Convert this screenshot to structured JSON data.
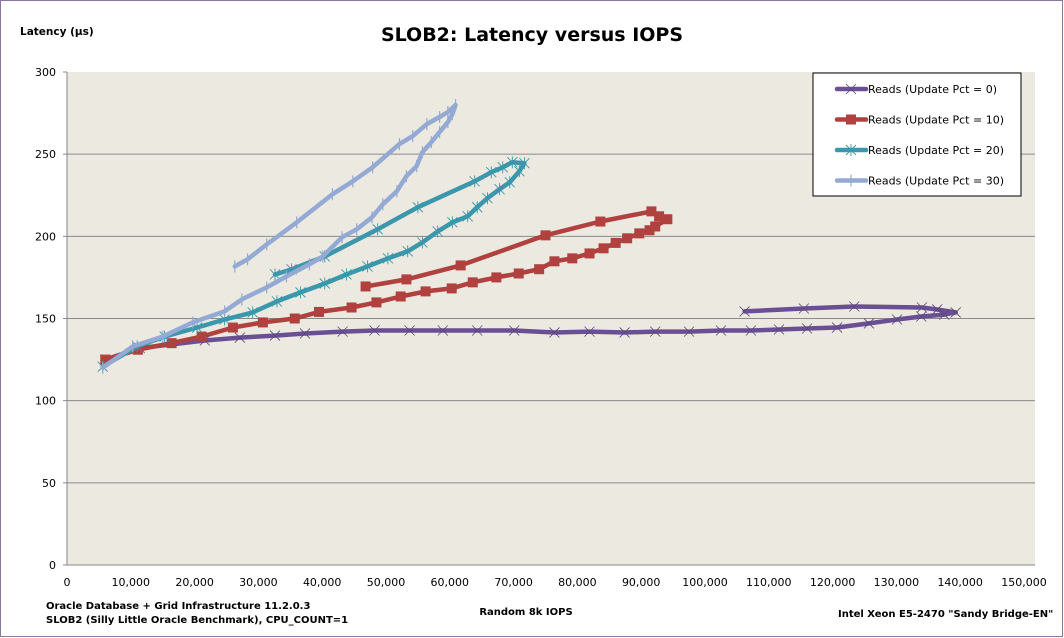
{
  "chart_data": {
    "type": "line",
    "title": "SLOB2: Latency versus IOPS",
    "xlabel": "Random 8k IOPS",
    "ylabel": "Latency (µs)",
    "xlim": [
      0,
      150000
    ],
    "ylim": [
      0,
      300
    ],
    "x_ticks": [
      "0",
      "10,000",
      "20,000",
      "30,000",
      "40,000",
      "50,000",
      "60,000",
      "70,000",
      "80,000",
      "90,000",
      "100,000",
      "110,000",
      "120,000",
      "130,000",
      "140,000",
      "150,000"
    ],
    "y_ticks": [
      "0",
      "50",
      "100",
      "150",
      "200",
      "250",
      "300"
    ],
    "grid": "horizontal",
    "legend_position": "top-right",
    "background": "#ece9e0",
    "footnotes": {
      "left_line1": "Oracle Database + Grid Infrastructure 11.2.0.3",
      "left_line2": "SLOB2 (Silly Little Oracle Benchmark), CPU_COUNT=1",
      "right": "Intel Xeon E5-2470 \"Sandy Bridge-EN\""
    },
    "series": [
      {
        "name": "Reads (Update Pct = 0)",
        "color": "#6b4f94",
        "marker": "x",
        "points": [
          [
            6000,
            125
          ],
          [
            11400,
            132
          ],
          [
            21600,
            136.6
          ],
          [
            27100,
            138.4
          ],
          [
            32600,
            139.6
          ],
          [
            37300,
            140.9
          ],
          [
            43200,
            142
          ],
          [
            48200,
            142.7
          ],
          [
            53700,
            142.7
          ],
          [
            58900,
            142.7
          ],
          [
            64300,
            142.7
          ],
          [
            70100,
            142.7
          ],
          [
            76400,
            141.5
          ],
          [
            81900,
            142
          ],
          [
            87400,
            141.5
          ],
          [
            92200,
            142
          ],
          [
            97500,
            142
          ],
          [
            102500,
            142.7
          ],
          [
            107200,
            142.7
          ],
          [
            111600,
            143.3
          ],
          [
            116000,
            143.9
          ],
          [
            120700,
            144.5
          ],
          [
            125700,
            147
          ],
          [
            130100,
            149.4
          ],
          [
            133900,
            151.2
          ],
          [
            137500,
            152.4
          ],
          [
            139300,
            153.7
          ],
          [
            136400,
            155.5
          ],
          [
            134000,
            156.7
          ],
          [
            123400,
            157.3
          ],
          [
            115500,
            156.1
          ],
          [
            106200,
            154.3
          ]
        ]
      },
      {
        "name": "Reads (Update Pct = 10)",
        "color": "#b0413e",
        "marker": "square",
        "points": [
          [
            6000,
            125
          ],
          [
            11100,
            131
          ],
          [
            16400,
            135
          ],
          [
            21100,
            139
          ],
          [
            26000,
            144.5
          ],
          [
            30700,
            147.6
          ],
          [
            35700,
            150
          ],
          [
            39500,
            154
          ],
          [
            44600,
            156.7
          ],
          [
            48500,
            159.8
          ],
          [
            52300,
            163.4
          ],
          [
            56200,
            166.5
          ],
          [
            60300,
            168.3
          ],
          [
            63600,
            172
          ],
          [
            67300,
            175
          ],
          [
            70800,
            177.4
          ],
          [
            74000,
            180
          ],
          [
            76400,
            184.8
          ],
          [
            79200,
            186.6
          ],
          [
            81900,
            189.6
          ],
          [
            84100,
            192.7
          ],
          [
            86000,
            196
          ],
          [
            87800,
            198.8
          ],
          [
            89700,
            201.8
          ],
          [
            91300,
            203.7
          ],
          [
            92200,
            206
          ],
          [
            94100,
            210.4
          ],
          [
            92800,
            212.2
          ],
          [
            91600,
            215.2
          ],
          [
            83600,
            209
          ],
          [
            75000,
            200.6
          ],
          [
            61700,
            182.3
          ],
          [
            53200,
            173.8
          ],
          [
            46800,
            169.5
          ]
        ]
      },
      {
        "name": "Reads (Update Pct = 20)",
        "color": "#3b97ab",
        "marker": "asterisk",
        "points": [
          [
            5600,
            120.7
          ],
          [
            11000,
            133
          ],
          [
            15300,
            139
          ],
          [
            20400,
            144.5
          ],
          [
            24700,
            149.4
          ],
          [
            29100,
            153.7
          ],
          [
            32900,
            160.4
          ],
          [
            36600,
            165.9
          ],
          [
            40400,
            171.3
          ],
          [
            43800,
            176.8
          ],
          [
            47100,
            181.7
          ],
          [
            50300,
            186.6
          ],
          [
            53400,
            190.9
          ],
          [
            55700,
            196.3
          ],
          [
            58100,
            203
          ],
          [
            60400,
            208.5
          ],
          [
            62800,
            212.2
          ],
          [
            64300,
            217.7
          ],
          [
            65900,
            223.2
          ],
          [
            67800,
            228.7
          ],
          [
            69400,
            232.9
          ],
          [
            70900,
            239.6
          ],
          [
            71700,
            244.5
          ],
          [
            69800,
            245.1
          ],
          [
            68300,
            242
          ],
          [
            66500,
            239
          ],
          [
            63900,
            233.5
          ],
          [
            55000,
            217.7
          ],
          [
            48700,
            204.3
          ],
          [
            40400,
            187.8
          ],
          [
            35200,
            179.9
          ],
          [
            32600,
            176.8
          ]
        ]
      },
      {
        "name": "Reads (Update Pct = 30)",
        "color": "#94aad4",
        "marker": "plus",
        "points": [
          [
            5600,
            120
          ],
          [
            10300,
            133
          ],
          [
            15000,
            139
          ],
          [
            19700,
            147.6
          ],
          [
            24700,
            154.3
          ],
          [
            27400,
            161.6
          ],
          [
            31300,
            168.9
          ],
          [
            34400,
            175.6
          ],
          [
            38000,
            183
          ],
          [
            40100,
            187.8
          ],
          [
            43100,
            199.4
          ],
          [
            45400,
            204.3
          ],
          [
            47800,
            211.6
          ],
          [
            49500,
            219.5
          ],
          [
            51700,
            227.4
          ],
          [
            53200,
            236.6
          ],
          [
            54800,
            242.7
          ],
          [
            55700,
            251.2
          ],
          [
            57100,
            257.3
          ],
          [
            58400,
            263.4
          ],
          [
            59700,
            269.5
          ],
          [
            60400,
            274.4
          ],
          [
            60900,
            279.9
          ],
          [
            59700,
            275.6
          ],
          [
            58400,
            272.6
          ],
          [
            56400,
            268.3
          ],
          [
            54200,
            261
          ],
          [
            52100,
            256.1
          ],
          [
            47900,
            242
          ],
          [
            44800,
            233.5
          ],
          [
            41600,
            225.6
          ],
          [
            36000,
            208.5
          ],
          [
            31300,
            195.1
          ],
          [
            28300,
            186
          ],
          [
            26300,
            181.7
          ]
        ]
      }
    ]
  }
}
